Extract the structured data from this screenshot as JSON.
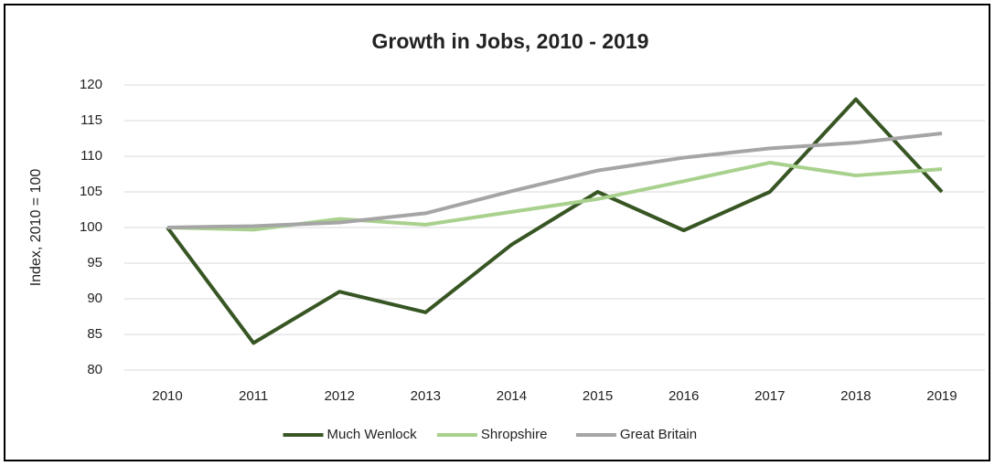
{
  "chart_data": {
    "type": "line",
    "title": "Growth in Jobs, 2010 - 2019",
    "y_label": "Index, 2010 = 100",
    "categories": [
      "2010",
      "2011",
      "2012",
      "2013",
      "2014",
      "2015",
      "2016",
      "2017",
      "2018",
      "2019"
    ],
    "series": [
      {
        "name": "Much Wenlock",
        "color": "#375623",
        "values": [
          100,
          83.8,
          91.0,
          88.1,
          97.6,
          105,
          99.6,
          105,
          118,
          105
        ]
      },
      {
        "name": "Shropshire",
        "color": "#a9d18e",
        "values": [
          100,
          99.7,
          101.2,
          100.4,
          102.2,
          104,
          106.5,
          109.1,
          107.3,
          108.2
        ]
      },
      {
        "name": "Great Britain",
        "color": "#a5a5a5",
        "values": [
          100,
          100.2,
          100.7,
          102,
          105.1,
          108,
          109.8,
          111.1,
          111.9,
          113.2
        ]
      }
    ],
    "ylim": [
      80,
      120
    ],
    "yticks": [
      80,
      85,
      90,
      95,
      100,
      105,
      110,
      115,
      120
    ],
    "grid": true,
    "legend": "bottom"
  }
}
